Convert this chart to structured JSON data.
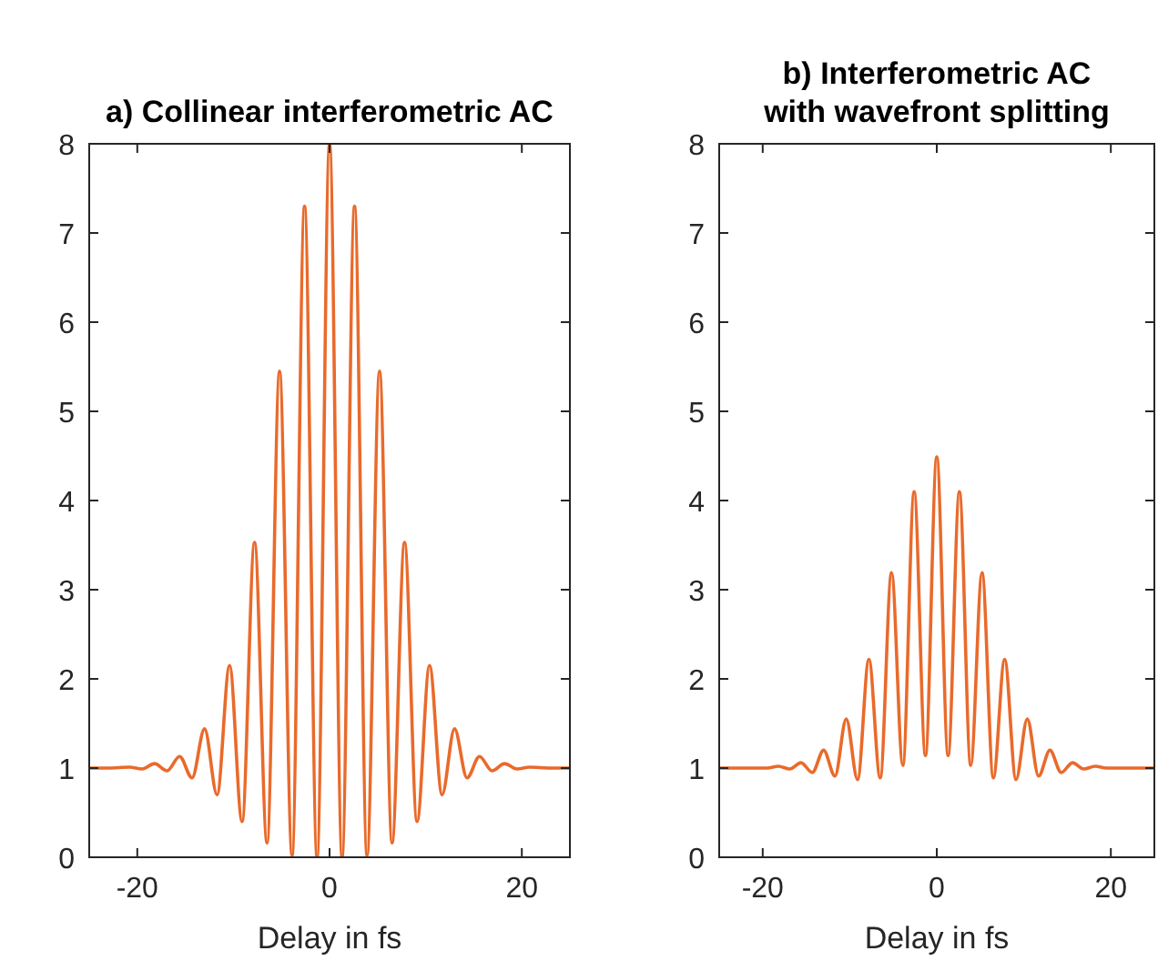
{
  "chart_data": [
    {
      "type": "line",
      "title": "a) Collinear interferometric AC",
      "xlabel": "Delay in fs",
      "x": [
        -25,
        -23,
        -20.8,
        -19.5,
        -18.2,
        -16.9,
        -15.6,
        -14.3,
        -13,
        -11.7,
        -10.4,
        -9.1,
        -7.8,
        -6.5,
        -5.2,
        -3.9,
        -2.6,
        -1.3,
        0,
        1.3,
        2.6,
        3.9,
        5.2,
        6.5,
        7.8,
        9.1,
        10.4,
        11.7,
        13,
        14.3,
        15.6,
        16.9,
        18.2,
        19.5,
        20.8,
        23,
        25
      ],
      "series": [
        {
          "color": "#e96a2b",
          "values": [
            1,
            1,
            1.01,
            0.99,
            1.05,
            0.97,
            1.13,
            0.89,
            1.44,
            0.7,
            2.15,
            0.4,
            3.53,
            0.16,
            5.45,
            0.02,
            7.3,
            0,
            8,
            0,
            7.3,
            0.02,
            5.45,
            0.16,
            3.53,
            0.4,
            2.15,
            0.7,
            1.44,
            0.89,
            1.13,
            0.97,
            1.05,
            0.99,
            1.01,
            1,
            1
          ]
        }
      ],
      "xlim": [
        -25,
        25
      ],
      "xticks": [
        -20,
        0,
        20
      ],
      "ylim": [
        0,
        8
      ],
      "yticks": [
        0,
        1,
        2,
        3,
        4,
        5,
        6,
        7,
        8
      ]
    },
    {
      "type": "line",
      "title": "b) Interferometric AC with wavefront splitting",
      "xlabel": "Delay in fs",
      "x": [
        -25,
        -23,
        -20.8,
        -19.5,
        -18.2,
        -16.9,
        -15.6,
        -14.3,
        -13,
        -11.7,
        -10.4,
        -9.1,
        -7.8,
        -6.5,
        -5.2,
        -3.9,
        -2.6,
        -1.3,
        0,
        1.3,
        2.6,
        3.9,
        5.2,
        6.5,
        7.8,
        9.1,
        10.4,
        11.7,
        13,
        14.3,
        15.6,
        16.9,
        18.2,
        19.5,
        20.8,
        23,
        25
      ],
      "series": [
        {
          "color": "#e96a2b",
          "values": [
            1,
            1,
            1,
            1,
            1.02,
            0.99,
            1.06,
            0.95,
            1.2,
            0.91,
            1.55,
            0.87,
            2.22,
            0.89,
            3.19,
            1.03,
            4.1,
            1.14,
            4.49,
            1.14,
            4.1,
            1.03,
            3.19,
            0.89,
            2.22,
            0.87,
            1.55,
            0.91,
            1.2,
            0.95,
            1.06,
            0.99,
            1.02,
            1,
            1,
            1,
            1
          ]
        }
      ],
      "xlim": [
        -25,
        25
      ],
      "xticks": [
        -20,
        0,
        20
      ],
      "ylim": [
        0,
        8
      ],
      "yticks": [
        0,
        1,
        2,
        3,
        4,
        5,
        6,
        7,
        8
      ]
    }
  ]
}
